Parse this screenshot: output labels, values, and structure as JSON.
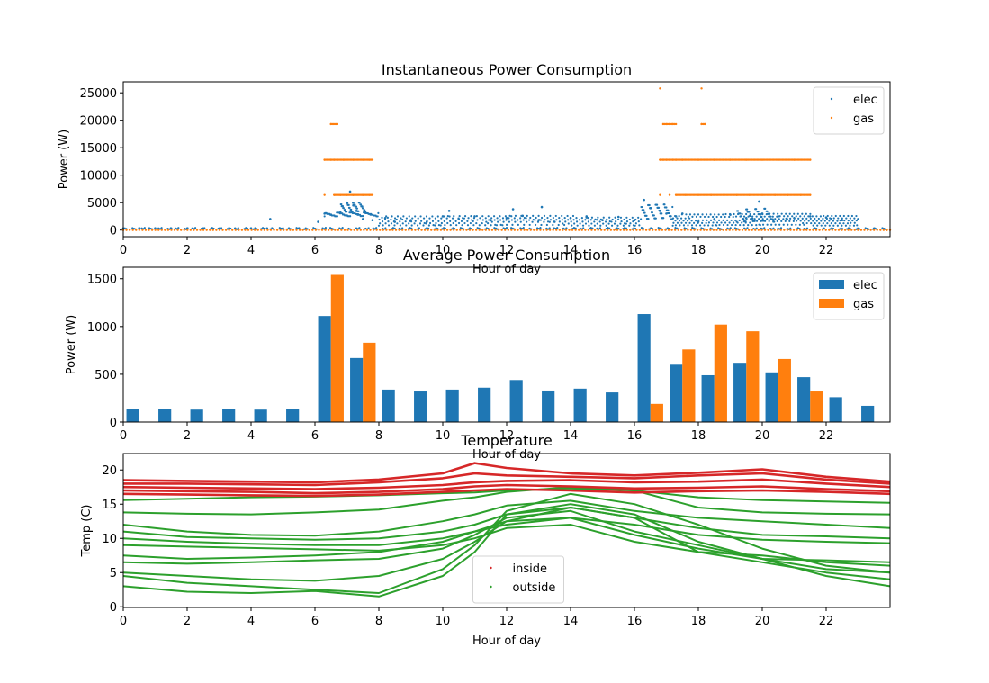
{
  "chart_data": [
    {
      "type": "scatter",
      "title": "Instantaneous Power Consumption",
      "xlabel": "Hour of day",
      "ylabel": "Power (W)",
      "xlim": [
        0,
        24
      ],
      "ylim": [
        -1200,
        27000
      ],
      "xticks": [
        "0",
        "2",
        "4",
        "6",
        "8",
        "10",
        "12",
        "14",
        "16",
        "18",
        "20",
        "22"
      ],
      "yticks": [
        "0",
        "5000",
        "10000",
        "15000",
        "20000",
        "25000"
      ],
      "legend": "top-right",
      "series": [
        {
          "name": "elec",
          "color": "#1f77b4",
          "description_points": "dense baseline ~300W all day, scattered 1000–5000W from 6 to 23h",
          "x": [
            0.0,
            0.5,
            1.0,
            1.5,
            2.0,
            2.5,
            3.0,
            3.5,
            4.0,
            4.5,
            4.6,
            5.0,
            5.5,
            6.1,
            6.3,
            6.5,
            6.8,
            7.0,
            7.1,
            7.2,
            7.3,
            7.5,
            7.8,
            8.2,
            8.5,
            9.0,
            9.5,
            10.0,
            10.2,
            10.5,
            11.0,
            11.5,
            12.0,
            12.2,
            12.5,
            13.0,
            13.1,
            13.5,
            14.0,
            14.5,
            15.0,
            15.5,
            16.0,
            16.3,
            16.5,
            16.8,
            17.0,
            17.3,
            17.5,
            18.0,
            18.5,
            19.0,
            19.5,
            19.9,
            20.0,
            20.5,
            21.0,
            21.5,
            22.0,
            22.5,
            23.0,
            23.5
          ],
          "y": [
            300,
            350,
            320,
            300,
            310,
            300,
            290,
            300,
            320,
            310,
            2000,
            300,
            320,
            1500,
            3000,
            2800,
            3100,
            5000,
            7000,
            4500,
            3500,
            2000,
            1800,
            2200,
            1500,
            1800,
            1500,
            2500,
            3500,
            2000,
            2500,
            1800,
            2200,
            3800,
            2600,
            1800,
            4200,
            1500,
            2200,
            2500,
            1800,
            2400,
            1800,
            5500,
            4000,
            3500,
            3000,
            2500,
            3000,
            1500,
            2000,
            2800,
            2200,
            5200,
            3000,
            2500,
            2200,
            2500,
            2300,
            1800,
            2000,
            300
          ]
        },
        {
          "name": "gas",
          "color": "#ff7f0e",
          "x": [
            0,
            6.3,
            6.5,
            6.6,
            6.7,
            6.9,
            7.2,
            7.5,
            7.7,
            6.3,
            6.6,
            6.8,
            7.0,
            7.2,
            7.5,
            7.7,
            6.5,
            6.7,
            16.8,
            16.9,
            17.0,
            17.1,
            17.2,
            17.3,
            17.5,
            18.0,
            18.5,
            19.0,
            19.5,
            20.0,
            20.5,
            21.0,
            21.5,
            16.8,
            17.1,
            17.3,
            17.6,
            18.0,
            18.4,
            18.8,
            19.2,
            19.6,
            20.0,
            20.4,
            20.8,
            21.2,
            21.5,
            16.9,
            17.0,
            17.1,
            17.2,
            18.1,
            18.2,
            16.8,
            18.1,
            23.9
          ],
          "y": [
            0,
            12800,
            12800,
            12800,
            12800,
            12800,
            12800,
            12800,
            12800,
            6400,
            6400,
            6400,
            6400,
            6400,
            6400,
            6400,
            19300,
            19300,
            12800,
            12800,
            12800,
            12800,
            12800,
            12800,
            12800,
            12800,
            12800,
            12800,
            12800,
            12800,
            12800,
            12800,
            12800,
            6400,
            6400,
            6400,
            6400,
            6400,
            6400,
            6400,
            6400,
            6400,
            6400,
            6400,
            6400,
            6400,
            6400,
            19300,
            19300,
            19300,
            19300,
            19300,
            19300,
            25800,
            25800,
            0
          ]
        }
      ]
    },
    {
      "type": "bar",
      "title": "Average Power Consumption",
      "xlabel": "Hour of day",
      "ylabel": "Power (W)",
      "xlim": [
        0,
        24
      ],
      "ylim": [
        0,
        1620
      ],
      "xticks": [
        "0",
        "2",
        "4",
        "6",
        "8",
        "10",
        "12",
        "14",
        "16",
        "18",
        "20",
        "22"
      ],
      "yticks": [
        "0",
        "500",
        "1000",
        "1500"
      ],
      "legend": "top-right",
      "categories": [
        0,
        1,
        2,
        3,
        4,
        5,
        6,
        7,
        8,
        9,
        10,
        11,
        12,
        13,
        14,
        15,
        16,
        17,
        18,
        19,
        20,
        21,
        22,
        23
      ],
      "series": [
        {
          "name": "elec",
          "color": "#1f77b4",
          "values": [
            140,
            140,
            130,
            140,
            130,
            140,
            1110,
            670,
            340,
            320,
            340,
            360,
            440,
            330,
            350,
            310,
            1130,
            600,
            490,
            620,
            520,
            470,
            260,
            170
          ]
        },
        {
          "name": "gas",
          "color": "#ff7f0e",
          "values": [
            0,
            0,
            0,
            0,
            0,
            0,
            1540,
            830,
            0,
            0,
            0,
            0,
            0,
            0,
            0,
            0,
            190,
            760,
            1020,
            950,
            660,
            320,
            0,
            0
          ]
        }
      ]
    },
    {
      "type": "line",
      "title": "Temperature",
      "xlabel": "Hour of day",
      "ylabel": "Temp (C)",
      "xlim": [
        0,
        24
      ],
      "ylim": [
        -0.1,
        22.4
      ],
      "xticks": [
        "0",
        "2",
        "4",
        "6",
        "8",
        "10",
        "12",
        "14",
        "16",
        "18",
        "20",
        "22"
      ],
      "yticks": [
        "0",
        "5",
        "10",
        "15",
        "20"
      ],
      "legend": "lower-center",
      "x": [
        0,
        2,
        4,
        6,
        8,
        10,
        11,
        12,
        14,
        16,
        18,
        20,
        22,
        24
      ],
      "series": [
        {
          "name": "inside",
          "color": "#d62728",
          "group": "inside",
          "values": [
            18.5,
            18.4,
            18.3,
            18.2,
            18.6,
            19.5,
            21.0,
            20.3,
            19.5,
            19.2,
            19.6,
            20.1,
            19.0,
            18.3
          ]
        },
        {
          "name": "",
          "color": "#d62728",
          "group": "inside",
          "values": [
            18.0,
            18.0,
            17.9,
            17.8,
            18.2,
            18.8,
            19.5,
            19.2,
            19.0,
            18.8,
            19.2,
            19.5,
            18.6,
            18.0
          ]
        },
        {
          "name": "",
          "color": "#d62728",
          "group": "inside",
          "values": [
            17.5,
            17.4,
            17.3,
            17.2,
            17.4,
            17.8,
            18.2,
            18.4,
            18.5,
            18.2,
            18.3,
            18.6,
            18.0,
            17.5
          ]
        },
        {
          "name": "",
          "color": "#d62728",
          "group": "inside",
          "values": [
            17.0,
            16.9,
            16.8,
            16.6,
            16.8,
            17.2,
            17.6,
            17.8,
            17.6,
            17.3,
            17.4,
            17.6,
            17.2,
            16.9
          ]
        },
        {
          "name": "",
          "color": "#d62728",
          "group": "inside",
          "values": [
            16.5,
            16.4,
            16.3,
            16.2,
            16.4,
            16.8,
            17.0,
            17.2,
            17.0,
            16.7,
            16.9,
            17.0,
            16.8,
            16.5
          ]
        },
        {
          "name": "outside",
          "color": "#2ca02c",
          "group": "outside",
          "values": [
            15.6,
            15.8,
            16.0,
            16.1,
            16.3,
            16.6,
            16.7,
            17.0,
            17.3,
            17.0,
            16.0,
            15.6,
            15.4,
            15.2
          ]
        },
        {
          "name": "",
          "color": "#2ca02c",
          "group": "outside",
          "values": [
            13.8,
            13.6,
            13.5,
            13.8,
            14.2,
            15.5,
            16.0,
            16.8,
            17.5,
            17.0,
            14.5,
            13.8,
            13.6,
            13.5
          ]
        },
        {
          "name": "",
          "color": "#2ca02c",
          "group": "outside",
          "values": [
            12.0,
            11.0,
            10.5,
            10.4,
            11.0,
            12.5,
            13.5,
            14.8,
            15.5,
            14.0,
            13.0,
            12.5,
            12.0,
            11.5
          ]
        },
        {
          "name": "",
          "color": "#2ca02c",
          "group": "outside",
          "values": [
            11.0,
            10.2,
            10.0,
            9.8,
            10.0,
            11.0,
            12.0,
            13.5,
            14.5,
            13.0,
            11.5,
            10.5,
            10.3,
            10.0
          ]
        },
        {
          "name": "",
          "color": "#2ca02c",
          "group": "outside",
          "values": [
            10.0,
            9.5,
            9.2,
            9.0,
            9.0,
            10.0,
            11.0,
            12.0,
            13.0,
            12.0,
            10.5,
            9.8,
            9.5,
            9.3
          ]
        },
        {
          "name": "",
          "color": "#2ca02c",
          "group": "outside",
          "values": [
            9.0,
            8.8,
            8.6,
            8.4,
            8.2,
            9.0,
            10.0,
            11.5,
            12.0,
            9.5,
            8.0,
            7.5,
            6.5,
            6.0
          ]
        },
        {
          "name": "",
          "color": "#2ca02c",
          "group": "outside",
          "values": [
            7.5,
            7.0,
            7.2,
            7.5,
            8.0,
            9.5,
            11.0,
            12.5,
            13.0,
            10.5,
            8.5,
            7.0,
            5.5,
            5.0
          ]
        },
        {
          "name": "",
          "color": "#2ca02c",
          "group": "outside",
          "values": [
            6.5,
            6.3,
            6.5,
            6.8,
            7.0,
            8.5,
            10.5,
            13.0,
            14.0,
            11.0,
            9.0,
            7.0,
            6.8,
            6.5
          ]
        },
        {
          "name": "",
          "color": "#2ca02c",
          "group": "outside",
          "values": [
            5.0,
            4.5,
            4.0,
            3.8,
            4.5,
            7.0,
            9.5,
            12.5,
            14.5,
            13.0,
            8.0,
            6.5,
            5.0,
            4.0
          ]
        },
        {
          "name": "",
          "color": "#2ca02c",
          "group": "outside",
          "values": [
            3.0,
            2.2,
            2.0,
            2.3,
            1.5,
            4.5,
            8.0,
            13.5,
            15.0,
            13.5,
            9.5,
            7.0,
            4.5,
            3.0
          ]
        },
        {
          "name": "",
          "color": "#2ca02c",
          "group": "outside",
          "values": [
            4.5,
            3.5,
            3.0,
            2.5,
            2.0,
            5.5,
            9.0,
            14.0,
            16.5,
            15.0,
            12.0,
            8.5,
            6.0,
            5.0
          ]
        }
      ]
    }
  ]
}
